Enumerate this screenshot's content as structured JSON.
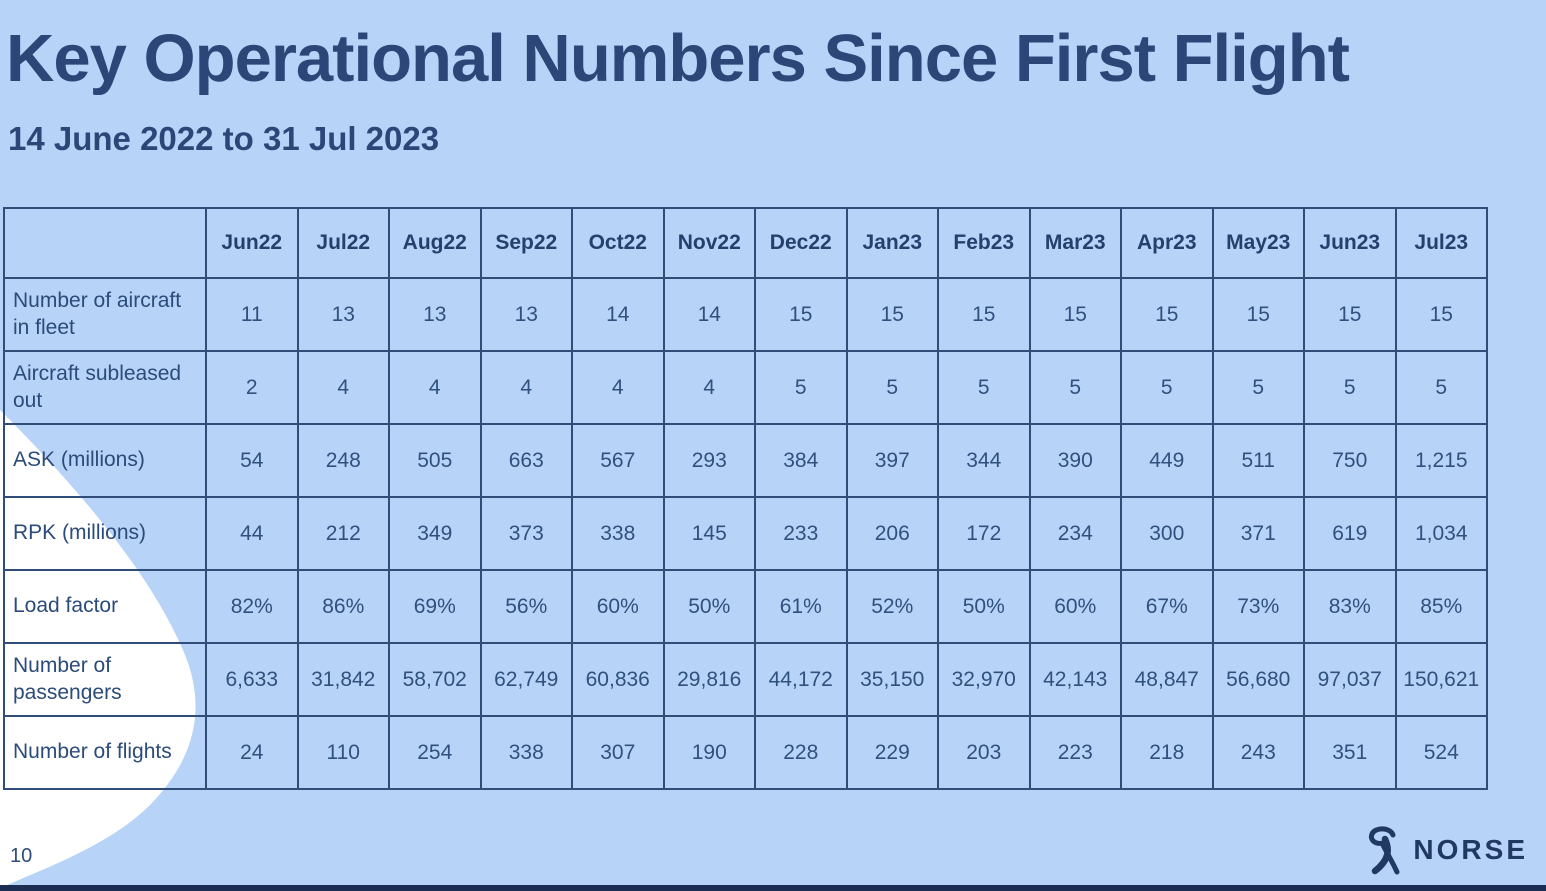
{
  "slide": {
    "title": "Key Operational Numbers Since First Flight",
    "subtitle": "14 June 2022 to 31 Jul 2023",
    "page_number": "10",
    "brand_name": "NORSE"
  },
  "colors": {
    "background": "#b8d3f8",
    "title_navy": "#2b4677",
    "table_border": "#2f4d78",
    "table_header_text": "#24416e",
    "table_cell_text": "#30507d",
    "footer_bar": "#1b2d52",
    "decorative_shape": "#ffffff",
    "logo_navy": "#203962"
  },
  "chart_data": {
    "type": "table",
    "title": "Key Operational Numbers Since First Flight",
    "subtitle": "14 June 2022 to 31 Jul 2023",
    "columns": [
      "",
      "Jun22",
      "Jul22",
      "Aug22",
      "Sep22",
      "Oct22",
      "Nov22",
      "Dec22",
      "Jan23",
      "Feb23",
      "Mar23",
      "Apr23",
      "May23",
      "Jun23",
      "Jul23"
    ],
    "rows": [
      {
        "label": "Number of aircraft in fleet",
        "values": [
          "11",
          "13",
          "13",
          "13",
          "14",
          "14",
          "15",
          "15",
          "15",
          "15",
          "15",
          "15",
          "15",
          "15"
        ]
      },
      {
        "label": "Aircraft subleased out",
        "values": [
          "2",
          "4",
          "4",
          "4",
          "4",
          "4",
          "5",
          "5",
          "5",
          "5",
          "5",
          "5",
          "5",
          "5"
        ]
      },
      {
        "label": "ASK (millions)",
        "values": [
          "54",
          "248",
          "505",
          "663",
          "567",
          "293",
          "384",
          "397",
          "344",
          "390",
          "449",
          "511",
          "750",
          "1,215"
        ]
      },
      {
        "label": "RPK (millions)",
        "values": [
          "44",
          "212",
          "349",
          "373",
          "338",
          "145",
          "233",
          "206",
          "172",
          "234",
          "300",
          "371",
          "619",
          "1,034"
        ]
      },
      {
        "label": "Load factor",
        "values": [
          "82%",
          "86%",
          "69%",
          "56%",
          "60%",
          "50%",
          "61%",
          "52%",
          "50%",
          "60%",
          "67%",
          "73%",
          "83%",
          "85%"
        ]
      },
      {
        "label": "Number of passengers",
        "values": [
          "6,633",
          "31,842",
          "58,702",
          "62,749",
          "60,836",
          "29,816",
          "44,172",
          "35,150",
          "32,970",
          "42,143",
          "48,847",
          "56,680",
          "97,037",
          "150,621"
        ]
      },
      {
        "label": "Number of flights",
        "values": [
          "24",
          "110",
          "254",
          "338",
          "307",
          "190",
          "228",
          "229",
          "203",
          "223",
          "218",
          "243",
          "351",
          "524"
        ]
      }
    ]
  }
}
